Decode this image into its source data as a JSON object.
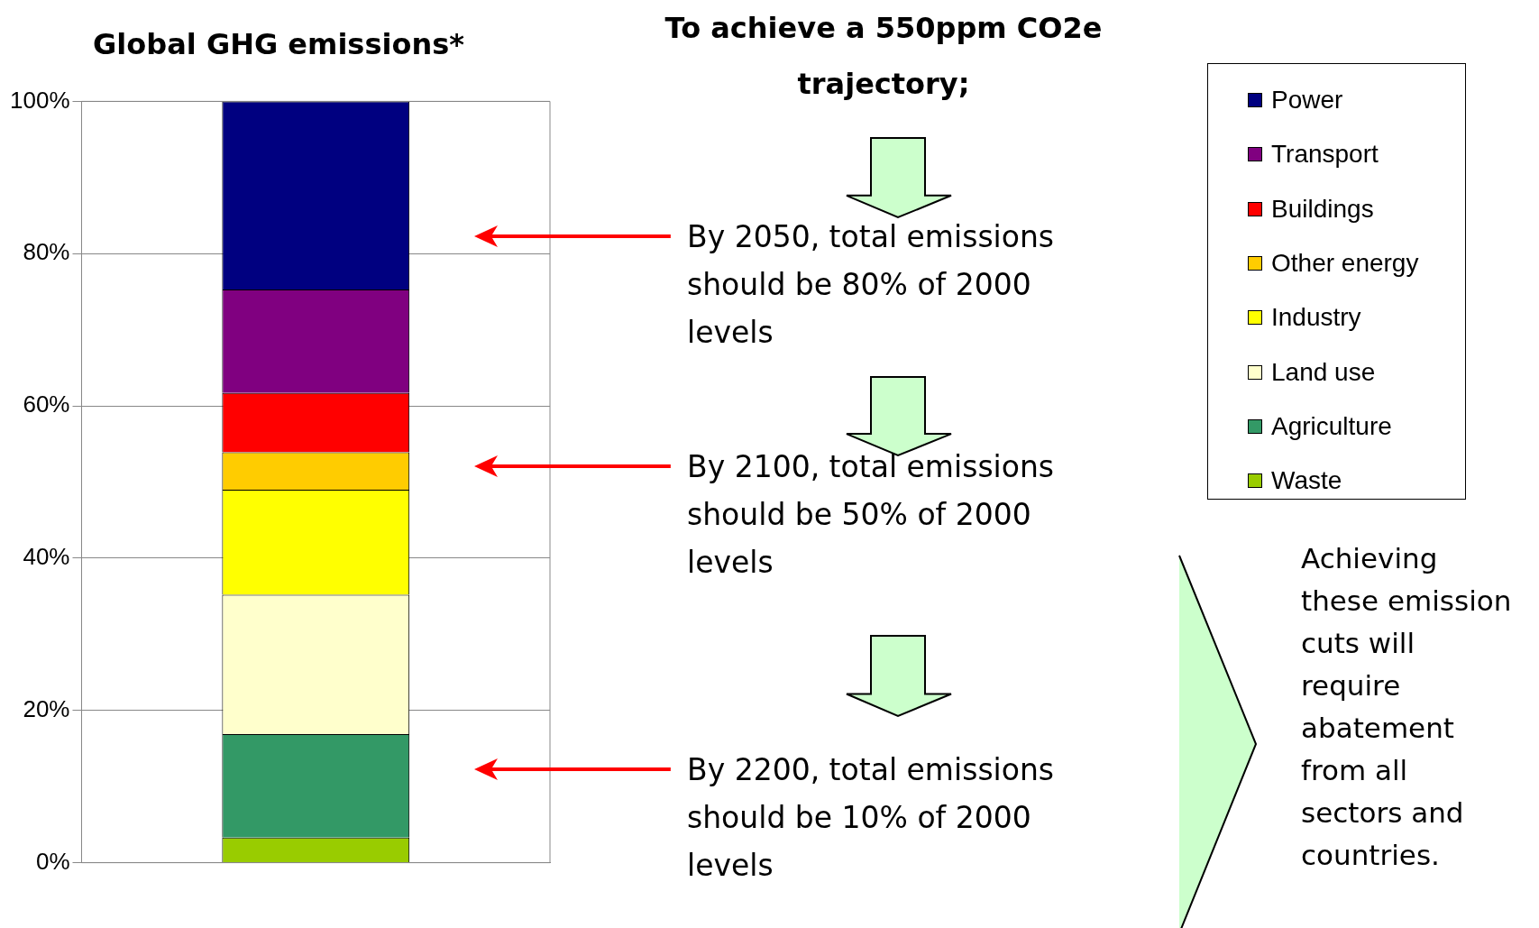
{
  "chart_data": {
    "type": "bar",
    "stacked": true,
    "title": "Global GHG emissions*",
    "categories": [
      null
    ],
    "series": [
      {
        "name": "Waste",
        "color": "#99cc00",
        "values": [
          3.3
        ]
      },
      {
        "name": "Agriculture",
        "color": "#339966",
        "values": [
          13.6
        ]
      },
      {
        "name": "Land use",
        "color": "#ffffcc",
        "values": [
          18.3
        ]
      },
      {
        "name": "Industry",
        "color": "#ffff00",
        "values": [
          13.8
        ]
      },
      {
        "name": "Other energy",
        "color": "#ffcc00",
        "values": [
          4.9
        ]
      },
      {
        "name": "Buildings",
        "color": "#ff0000",
        "values": [
          7.8
        ]
      },
      {
        "name": "Transport",
        "color": "#800080",
        "values": [
          13.6
        ]
      },
      {
        "name": "Power",
        "color": "#000080",
        "values": [
          24.7
        ]
      }
    ],
    "ylim": [
      0,
      100
    ],
    "yticks": [
      {
        "value": 0,
        "label": "0%"
      },
      {
        "value": 20,
        "label": "20%"
      },
      {
        "value": 40,
        "label": "40%"
      },
      {
        "value": 60,
        "label": "60%"
      },
      {
        "value": 80,
        "label": "80%"
      },
      {
        "value": 100,
        "label": "100%"
      }
    ],
    "grid": "y",
    "legend": "top right",
    "annotations": [
      "To achieve a 550ppm CO2e trajectory;",
      "By 2050, total emissions should be 80% of 2000 levels",
      "By 2100, total emissions should be 50% of 2000 levels",
      "By 2200, total emissions should be 10% of 2000 levels",
      "Achieving these emission cuts will require abatement from all sectors and countries."
    ]
  }
}
